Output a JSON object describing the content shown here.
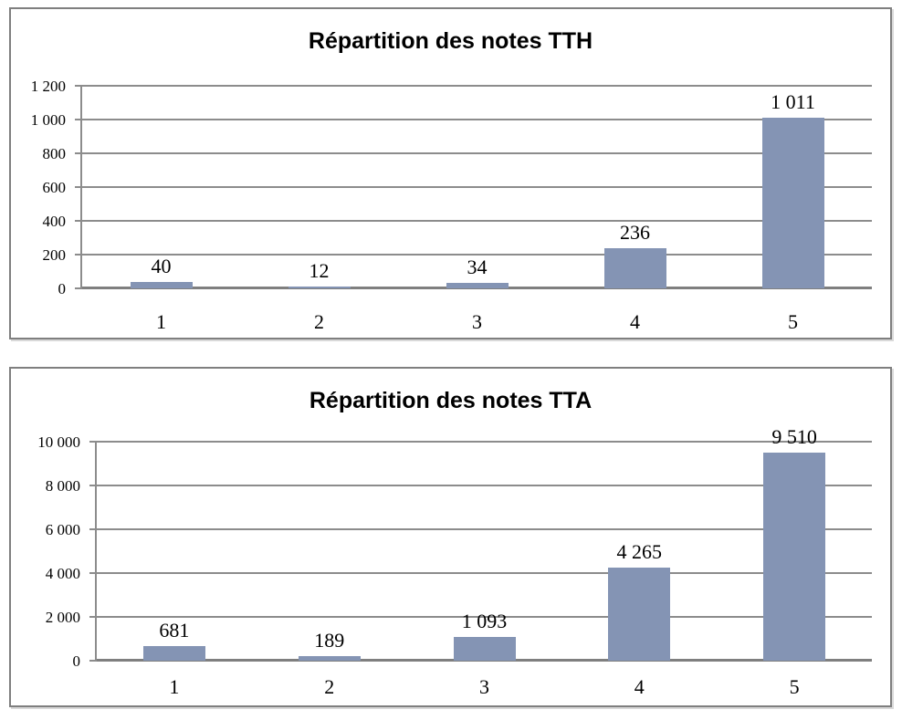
{
  "colors": {
    "bar": "#8494B4",
    "gridline": "#8C8C8C",
    "baseline": "#7F7F7F",
    "card_border": "#7F7F7F",
    "text": "#000000",
    "background": "#FFFFFF"
  },
  "chart_data": [
    {
      "type": "bar",
      "title": "Répartition des notes TTH",
      "categories": [
        "1",
        "2",
        "3",
        "4",
        "5"
      ],
      "values": [
        40,
        12,
        34,
        236,
        1011
      ],
      "value_labels": [
        "40",
        "12",
        "34",
        "236",
        "1 011"
      ],
      "xlabel": "",
      "ylabel": "",
      "ylim": [
        0,
        1200
      ],
      "ytick_step": 200,
      "ytick_labels": [
        "0",
        "200",
        "400",
        "600",
        "800",
        "1 000",
        "1 200"
      ],
      "grid": true,
      "legend": "none",
      "bar_color": "#8494B4"
    },
    {
      "type": "bar",
      "title": "Répartition des notes TTA",
      "categories": [
        "1",
        "2",
        "3",
        "4",
        "5"
      ],
      "values": [
        681,
        189,
        1093,
        4265,
        9510
      ],
      "value_labels": [
        "681",
        "189",
        "1 093",
        "4 265",
        "9 510"
      ],
      "xlabel": "",
      "ylabel": "",
      "ylim": [
        0,
        10000
      ],
      "ytick_step": 2000,
      "ytick_labels": [
        "0",
        "2 000",
        "4 000",
        "6 000",
        "8 000",
        "10 000"
      ],
      "grid": true,
      "legend": "none",
      "bar_color": "#8494B4"
    }
  ]
}
